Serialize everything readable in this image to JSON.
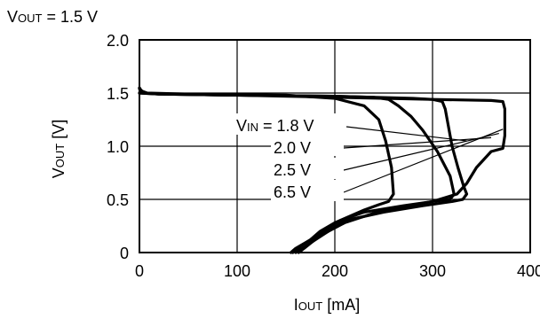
{
  "chart_data": {
    "type": "line",
    "title": {
      "main": "V",
      "sub": "OUT",
      "rest": " = 1.5 V"
    },
    "xlabel": {
      "main": "I",
      "sub": "OUT",
      "rest": " [mA]"
    },
    "ylabel": {
      "main": "V",
      "sub": "OUT",
      "rest": " [V]"
    },
    "xlim": [
      0,
      400
    ],
    "ylim": [
      0,
      2.0
    ],
    "xticks": [
      0,
      100,
      200,
      300,
      400
    ],
    "yticks": [
      0,
      0.5,
      1.0,
      1.5,
      2.0
    ],
    "xtick_labels": [
      "0",
      "100",
      "200",
      "300",
      "400"
    ],
    "ytick_labels": [
      "0",
      "0.5",
      "1.0",
      "1.5",
      "2.0"
    ],
    "grid": true,
    "curve_label_prefix": {
      "main": "V",
      "sub": "IN",
      "rest": " = "
    },
    "series": [
      {
        "name": "1.8 V",
        "label_text": "1.8 V",
        "x": [
          0,
          2,
          8,
          50,
          150,
          200,
          230,
          245,
          252,
          258,
          260,
          255,
          245,
          230,
          200,
          185,
          175,
          160,
          155
        ],
        "y": [
          1.55,
          1.52,
          1.5,
          1.49,
          1.48,
          1.45,
          1.38,
          1.25,
          1.05,
          0.8,
          0.55,
          0.48,
          0.45,
          0.4,
          0.28,
          0.2,
          0.12,
          0.04,
          0
        ]
      },
      {
        "name": "2.0 V",
        "label_text": "2.0 V",
        "x": [
          0,
          5,
          20,
          100,
          200,
          240,
          255,
          265,
          278,
          290,
          305,
          318,
          322,
          318,
          300,
          270,
          230,
          205,
          185,
          165,
          157
        ],
        "y": [
          1.54,
          1.5,
          1.49,
          1.48,
          1.47,
          1.46,
          1.44,
          1.38,
          1.28,
          1.15,
          0.95,
          0.72,
          0.55,
          0.5,
          0.48,
          0.44,
          0.38,
          0.3,
          0.18,
          0.06,
          0
        ]
      },
      {
        "name": "2.5 V",
        "label_text": "2.5 V",
        "x": [
          0,
          20,
          100,
          200,
          280,
          300,
          310,
          313,
          316,
          320,
          326,
          332,
          335,
          331,
          320,
          290,
          250,
          210,
          190,
          170,
          160
        ],
        "y": [
          1.5,
          1.49,
          1.48,
          1.47,
          1.45,
          1.44,
          1.42,
          1.35,
          1.2,
          1.0,
          0.8,
          0.62,
          0.55,
          0.5,
          0.48,
          0.44,
          0.38,
          0.3,
          0.18,
          0.06,
          0
        ]
      },
      {
        "name": "6.5 V",
        "label_text": "6.5 V",
        "x": [
          0,
          20,
          100,
          200,
          300,
          360,
          372,
          374,
          374,
          372,
          360,
          345,
          335,
          325,
          300,
          250,
          210,
          185,
          170,
          163
        ],
        "y": [
          1.5,
          1.49,
          1.48,
          1.46,
          1.44,
          1.43,
          1.42,
          1.35,
          1.1,
          0.98,
          0.95,
          0.8,
          0.65,
          0.55,
          0.48,
          0.4,
          0.28,
          0.16,
          0.05,
          0
        ]
      }
    ],
    "label_leaders": [
      {
        "to_x": 335,
        "to_y": 1.05
      },
      {
        "to_x": 360,
        "to_y": 1.08
      },
      {
        "to_x": 368,
        "to_y": 1.12
      },
      {
        "to_x": 372,
        "to_y": 1.16
      }
    ]
  }
}
